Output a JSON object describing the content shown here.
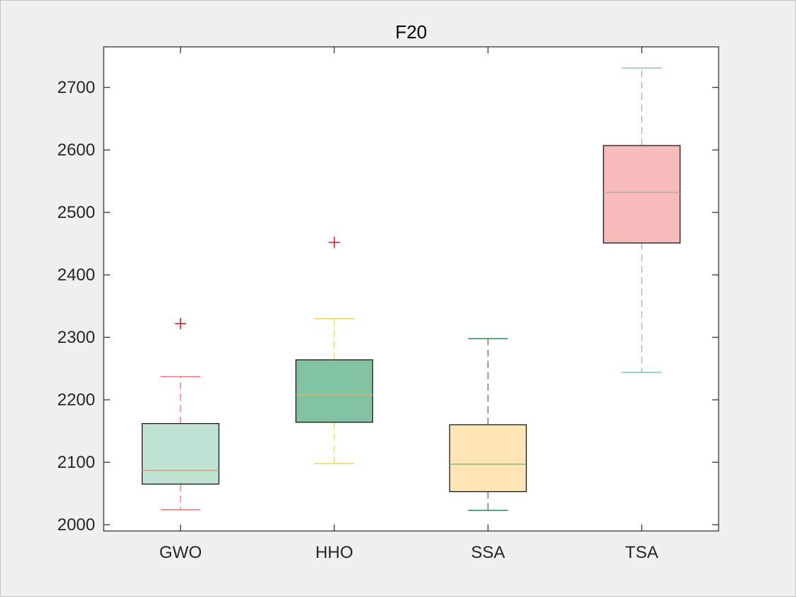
{
  "chart_data": {
    "type": "boxplot",
    "title": "F20",
    "xlabel": "",
    "ylabel": "",
    "ylim": [
      1990,
      2765
    ],
    "yticks": [
      2000,
      2100,
      2200,
      2300,
      2400,
      2500,
      2600,
      2700
    ],
    "grid": false,
    "categories": [
      "GWO",
      "HHO",
      "SSA",
      "TSA"
    ],
    "boxes": [
      {
        "name": "GWO",
        "whisker_low": 2024,
        "q1": 2065,
        "median": 2087,
        "q3": 2162,
        "whisker_high": 2237,
        "outliers": [
          2322
        ],
        "fill": "#bfe2d2",
        "median_color": "#c8a48a",
        "whisker_color": "#e8787a"
      },
      {
        "name": "HHO",
        "whisker_low": 2098,
        "q1": 2164,
        "median": 2208,
        "q3": 2264,
        "whisker_high": 2330,
        "outliers": [
          2452
        ],
        "fill": "#81c3a2",
        "median_color": "#c9b873",
        "whisker_color": "#f5cf6a"
      },
      {
        "name": "SSA",
        "whisker_low": 2023,
        "q1": 2053,
        "median": 2097,
        "q3": 2160,
        "whisker_high": 2298,
        "outliers": [],
        "fill": "#fde6b4",
        "median_color": "#7fbf6a",
        "whisker_color": "#2a8a5a"
      },
      {
        "name": "TSA",
        "whisker_low": 2244,
        "q1": 2451,
        "median": 2532,
        "q3": 2607,
        "whisker_high": 2731,
        "outliers": [],
        "fill": "#f7bbbb",
        "median_color": "#b0b09a",
        "whisker_color": "#86c4a7"
      }
    ],
    "outlier_color": "#dd1f26"
  }
}
